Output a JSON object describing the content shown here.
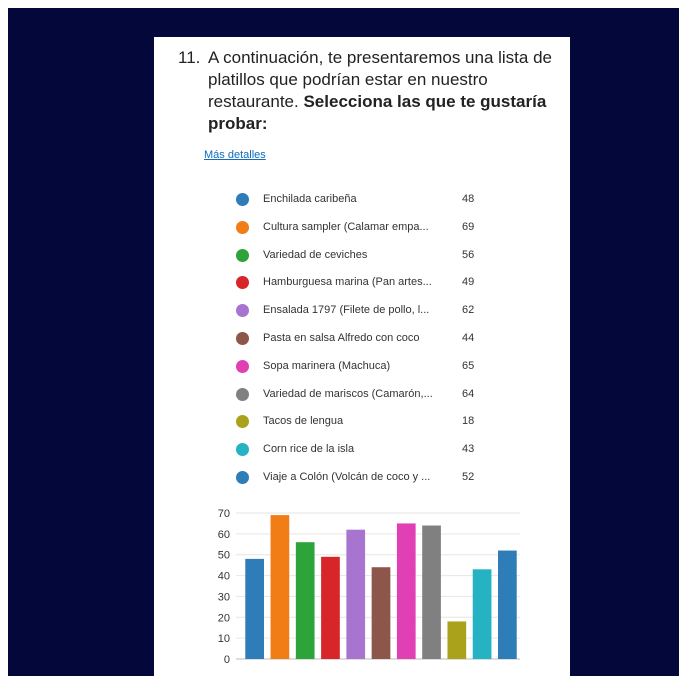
{
  "question": {
    "number": "11.",
    "text": "A continuación, te presentaremos una lista de platillos que podrían estar en nuestro restaurante.",
    "emphasis": "Selecciona las que te gustaría probar:"
  },
  "details_link": "Más detalles",
  "legend": [
    {
      "label": "Enchilada caribeña",
      "count": "48",
      "color": "#2e7cb8"
    },
    {
      "label": "Cultura sampler (Calamar empa...",
      "count": "69",
      "color": "#f07d16"
    },
    {
      "label": "Variedad de ceviches",
      "count": "56",
      "color": "#2ea33a"
    },
    {
      "label": "Hamburguesa marina (Pan artes...",
      "count": "49",
      "color": "#d7262a"
    },
    {
      "label": "Ensalada 1797 (Filete de pollo, l...",
      "count": "62",
      "color": "#a775cf"
    },
    {
      "label": "Pasta en salsa Alfredo con coco",
      "count": "44",
      "color": "#8c564b"
    },
    {
      "label": "Sopa marinera (Machuca)",
      "count": "65",
      "color": "#e040b4"
    },
    {
      "label": "Variedad de mariscos (Camarón,...",
      "count": "64",
      "color": "#808080"
    },
    {
      "label": "Tacos de lengua",
      "count": "18",
      "color": "#aba21c"
    },
    {
      "label": "Corn rice de la isla",
      "count": "43",
      "color": "#25b2c2"
    },
    {
      "label": "Viaje a Colón (Volcán de coco y ...",
      "count": "52",
      "color": "#2e7cb8"
    }
  ],
  "chart_data": {
    "type": "bar",
    "categories": [
      "Enchilada caribeña",
      "Cultura sampler (Calamar empa...",
      "Variedad de ceviches",
      "Hamburguesa marina (Pan artes...",
      "Ensalada 1797 (Filete de pollo, l...",
      "Pasta en salsa Alfredo con coco",
      "Sopa marinera (Machuca)",
      "Variedad de mariscos (Camarón,...",
      "Tacos de lengua",
      "Corn rice de la isla",
      "Viaje a Colón (Volcán de coco y ..."
    ],
    "values": [
      48,
      69,
      56,
      49,
      62,
      44,
      65,
      64,
      18,
      43,
      52
    ],
    "colors": [
      "#2e7cb8",
      "#f07d16",
      "#2ea33a",
      "#d7262a",
      "#a775cf",
      "#8c564b",
      "#e040b4",
      "#808080",
      "#aba21c",
      "#25b2c2",
      "#2e7cb8"
    ],
    "yticks": [
      0,
      10,
      20,
      30,
      40,
      50,
      60,
      70
    ],
    "ylim": [
      0,
      70
    ],
    "grid": true,
    "legend": "top",
    "title": "",
    "xlabel": "",
    "ylabel": ""
  }
}
